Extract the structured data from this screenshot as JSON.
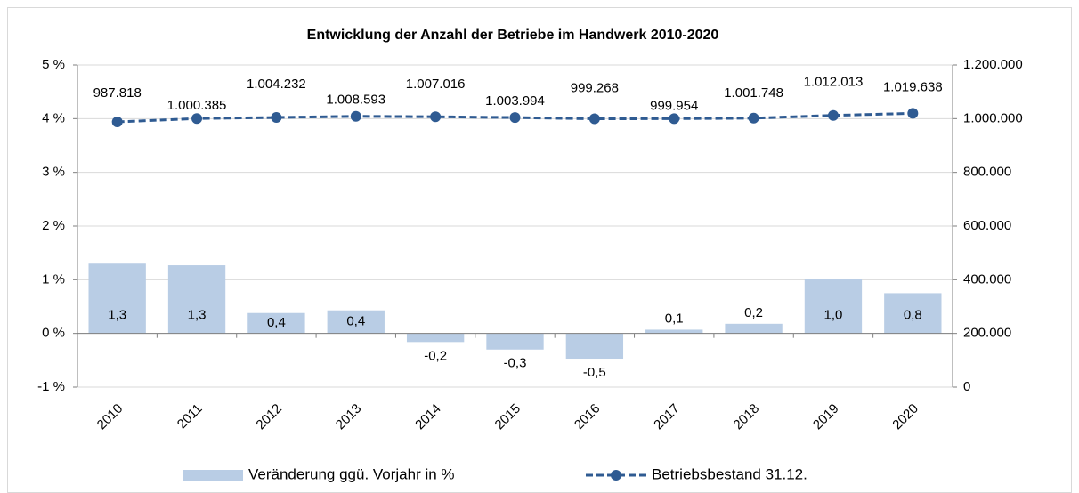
{
  "chart_data": {
    "type": "bar-line",
    "title": "Entwicklung der Anzahl der Betriebe im Handwerk 2010-2020",
    "categories": [
      "2010",
      "2011",
      "2012",
      "2013",
      "2014",
      "2015",
      "2016",
      "2017",
      "2018",
      "2019",
      "2020"
    ],
    "series": [
      {
        "name": "Veränderung ggü. Vorjahr in %",
        "type": "bar",
        "color": "#b9cde5",
        "axis": "y",
        "values": [
          1.3,
          1.27,
          0.38,
          0.43,
          -0.16,
          -0.3,
          -0.47,
          0.07,
          0.18,
          1.02,
          0.75
        ],
        "value_labels": [
          "1,3",
          "1,3",
          "0,4",
          "0,4",
          "-0,2",
          "-0,3",
          "-0,5",
          "0,1",
          "0,2",
          "1,0",
          "0,8"
        ]
      },
      {
        "name": "Betriebsbestand 31.12.",
        "type": "line",
        "color": "#2f5b92",
        "axis": "y2",
        "values": [
          987818,
          1000385,
          1004232,
          1008593,
          1007016,
          1003994,
          999268,
          999954,
          1001748,
          1012013,
          1019638
        ],
        "value_labels": [
          "987.818",
          "1.000.385",
          "1.004.232",
          "1.008.593",
          "1.007.016",
          "1.003.994",
          "999.268",
          "999.954",
          "1.001.748",
          "1.012.013",
          "1.019.638"
        ]
      }
    ],
    "ylim": [
      -1,
      5
    ],
    "yticks": [
      {
        "value": -1,
        "label": "-1 %"
      },
      {
        "value": 0,
        "label": "0 %"
      },
      {
        "value": 1,
        "label": "1 %"
      },
      {
        "value": 2,
        "label": "2 %"
      },
      {
        "value": 3,
        "label": "3 %"
      },
      {
        "value": 4,
        "label": "4 %"
      },
      {
        "value": 5,
        "label": "5 %"
      }
    ],
    "y2lim": [
      0,
      1200000
    ],
    "y2ticks": [
      0,
      {
        "value": 200000,
        "label": "200.000"
      },
      {
        "value": 400000,
        "label": "400.000"
      },
      {
        "value": 600000,
        "label": "600.000"
      },
      {
        "value": 800000,
        "label": "800.000"
      },
      {
        "value": 1000000,
        "label": "1.000.000"
      },
      {
        "value": 1200000,
        "label": "1.200.000"
      }
    ],
    "grid": true,
    "legend": "bottom"
  }
}
